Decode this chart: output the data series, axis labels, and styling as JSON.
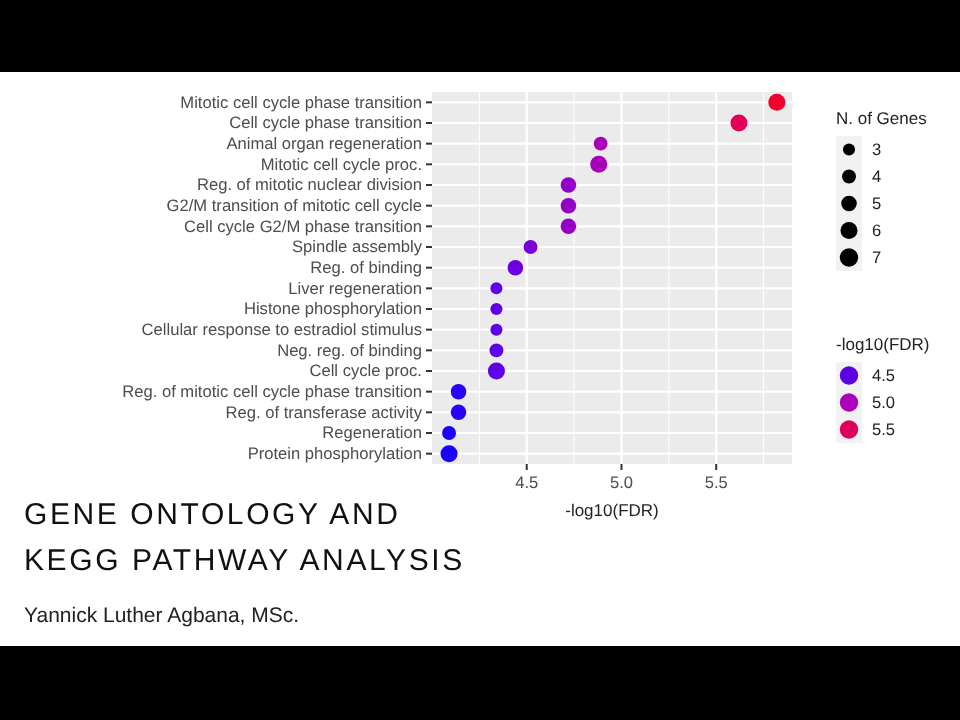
{
  "chart_data": {
    "type": "bubble",
    "orientation": "horizontal",
    "title": "GENE ONTOLOGY AND KEGG PATHWAY ANALYSIS",
    "annotations": [
      "Yannick Luther Agbana, MSc."
    ],
    "categories": [
      "Mitotic cell cycle phase transition",
      "Cell cycle phase transition",
      "Animal organ regeneration",
      "Mitotic cell cycle proc.",
      "Reg. of mitotic nuclear division",
      "G2/M transition of mitotic cell cycle",
      "Cell cycle G2/M phase transition",
      "Spindle assembly",
      "Reg. of binding",
      "Liver regeneration",
      "Histone phosphorylation",
      "Cellular response to estradiol stimulus",
      "Neg. reg. of binding",
      "Cell cycle proc.",
      "Reg. of mitotic cell cycle phase transition",
      "Reg. of transferase activity",
      "Regeneration",
      "Protein phosphorylation"
    ],
    "values": [
      5.82,
      5.62,
      4.89,
      4.88,
      4.72,
      4.72,
      4.72,
      4.52,
      4.44,
      4.34,
      4.34,
      4.34,
      4.34,
      4.34,
      4.14,
      4.14,
      4.09,
      4.09
    ],
    "sizes": [
      6,
      6,
      4,
      6,
      5,
      5,
      5,
      4,
      5,
      3,
      3,
      3,
      4,
      6,
      5,
      5,
      4,
      6
    ],
    "colors": [
      "#f5002e",
      "#e2005a",
      "#a800b8",
      "#a800b8",
      "#9400c8",
      "#9400c8",
      "#9400c8",
      "#7a00d8",
      "#6c00e0",
      "#5e00e8",
      "#5e00e8",
      "#5e00e8",
      "#5e00e8",
      "#5e00e8",
      "#2a00f8",
      "#2a00f8",
      "#1a00ff",
      "#1a00ff"
    ],
    "size_legend": [
      3,
      4,
      5,
      6,
      7
    ],
    "legend_title": "N. of Genes",
    "clabel": "-log10(FDR)",
    "clim": [
      4.09,
      5.82
    ],
    "cticks": [
      4.5,
      {
        "value": 5,
        "label": "5.0"
      },
      5.5
    ],
    "xlabel": "-log10(FDR)",
    "xlim": [
      4.0,
      5.9
    ],
    "xticks": [
      4.5,
      {
        "value": 5,
        "label": "5.0"
      },
      5.5
    ],
    "grid": true
  }
}
